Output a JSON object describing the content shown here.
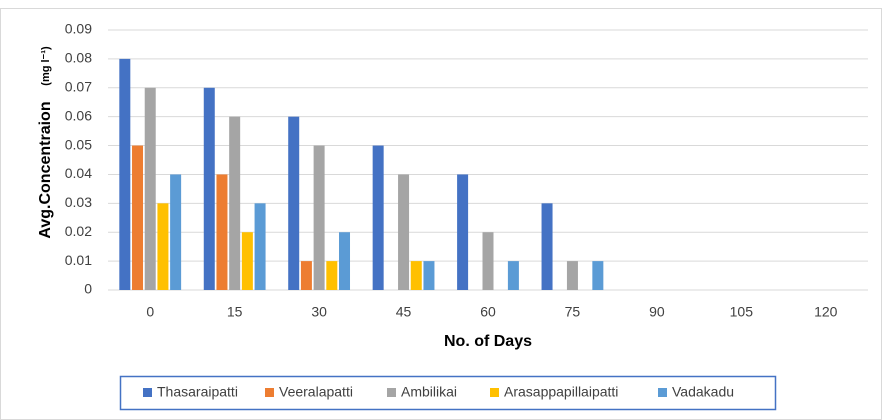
{
  "chart_data": {
    "type": "bar",
    "x_label": "No. of Days",
    "y_label": "Avg.Concentraion",
    "y_label_unit": "(mg l⁻¹)",
    "categories": [
      "0",
      "15",
      "30",
      "45",
      "60",
      "75",
      "90",
      "105",
      "120"
    ],
    "series": [
      {
        "name": "Thasaraipatti",
        "color": "#4472c4",
        "values": [
          0.08,
          0.07,
          0.06,
          0.05,
          0.04,
          0.03,
          0,
          0,
          0
        ]
      },
      {
        "name": "Veeralapatti",
        "color": "#ed7d31",
        "values": [
          0.05,
          0.04,
          0.01,
          0,
          0,
          0,
          0,
          0,
          0
        ]
      },
      {
        "name": "Ambilikai",
        "color": "#a5a5a5",
        "values": [
          0.07,
          0.06,
          0.05,
          0.04,
          0.02,
          0.01,
          0,
          0,
          0
        ]
      },
      {
        "name": "Arasappapillaipatti",
        "color": "#ffc000",
        "values": [
          0.03,
          0.02,
          0.01,
          0.01,
          0,
          0,
          0,
          0,
          0
        ]
      },
      {
        "name": "Vadakadu",
        "color": "#5b9bd5",
        "values": [
          0.04,
          0.03,
          0.02,
          0.01,
          0.01,
          0.01,
          0,
          0,
          0
        ]
      }
    ],
    "ylim": [
      0,
      0.09
    ],
    "yticks": [
      0,
      0.01,
      0.02,
      0.03,
      0.04,
      0.05,
      0.06,
      0.07,
      0.08,
      0.09
    ],
    "grid": true,
    "legend": "bottom"
  }
}
